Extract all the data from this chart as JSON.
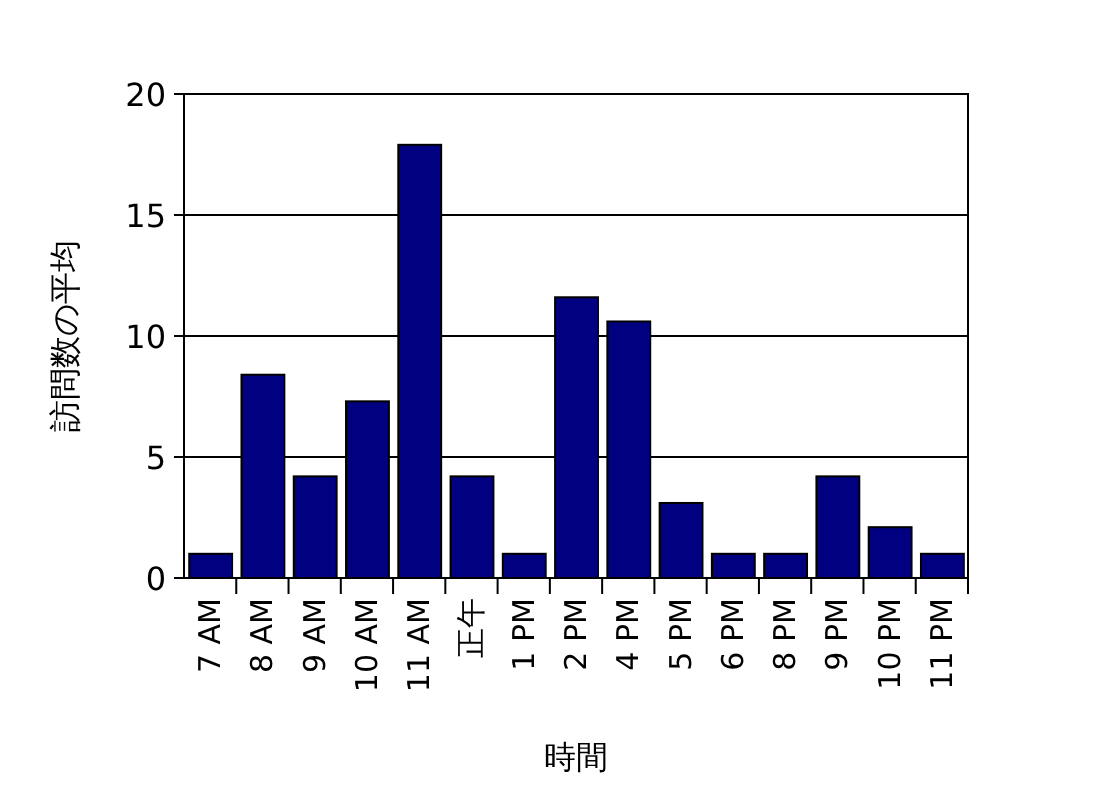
{
  "chart_data": {
    "type": "bar",
    "categories": [
      "7 AM",
      "8 AM",
      "9 AM",
      "10 AM",
      "11 AM",
      "正午",
      "1 PM",
      "2 PM",
      "4 PM",
      "5 PM",
      "6 PM",
      "8 PM",
      "9 PM",
      "10 PM",
      "11 PM"
    ],
    "values": [
      1,
      8.4,
      4.2,
      7.3,
      17.9,
      4.2,
      1,
      11.6,
      10.6,
      3.1,
      1,
      1,
      4.2,
      2.1,
      1
    ],
    "color": "#000080",
    "xlabel": "時間",
    "ylabel": "訪問数の平均",
    "ylim": [
      0,
      20
    ],
    "yticks": [
      0,
      5,
      10,
      15,
      20
    ],
    "grid": "y"
  }
}
